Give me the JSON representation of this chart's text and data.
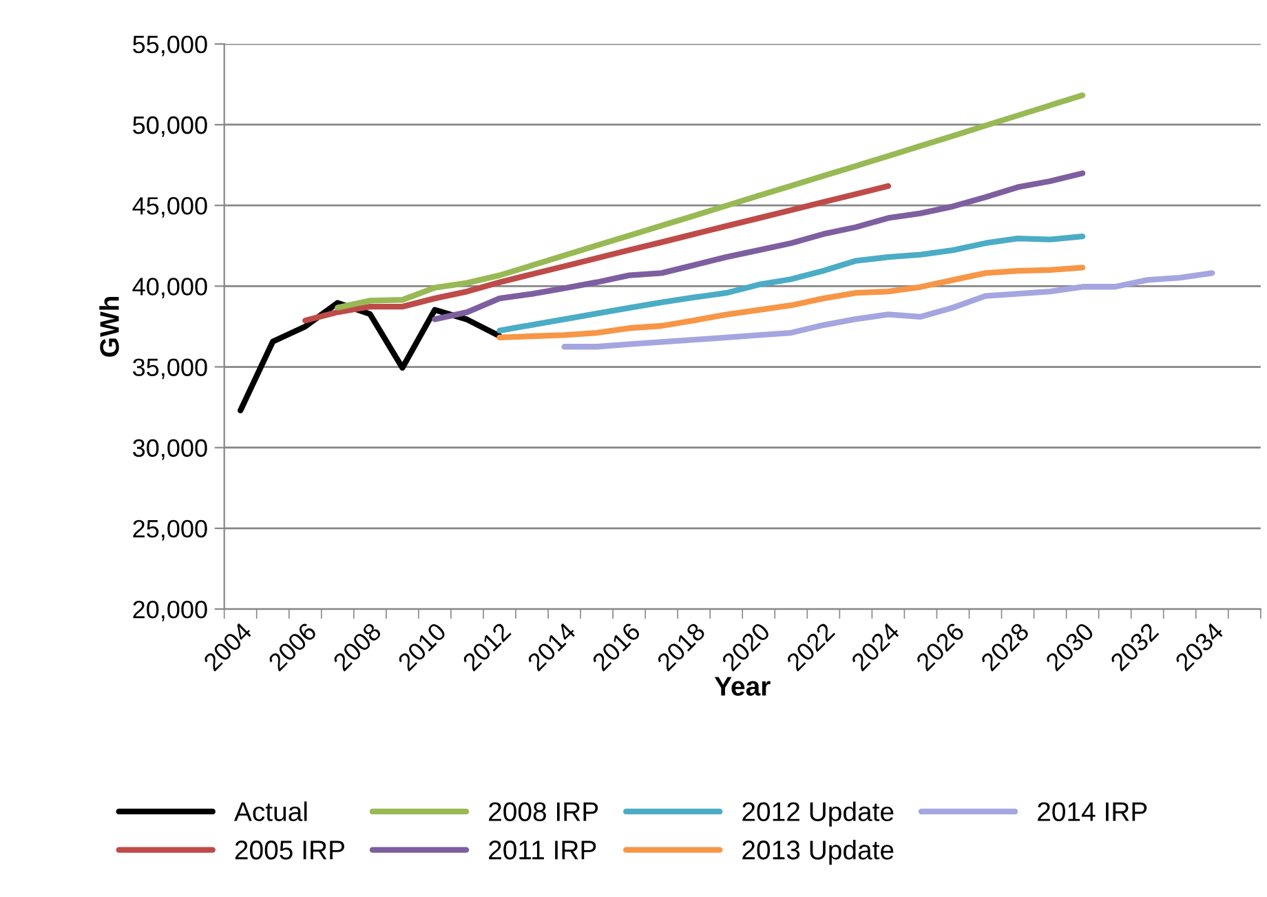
{
  "chart_data": {
    "type": "line",
    "xlabel": "Year",
    "ylabel": "GWh",
    "categories": [
      "2004",
      null,
      "2006",
      null,
      "2008",
      null,
      "2010",
      null,
      "2012",
      null,
      "2014",
      null,
      "2016",
      null,
      "2018",
      null,
      "2020",
      null,
      "2022",
      null,
      "2024",
      null,
      "2026",
      null,
      "2028",
      null,
      "2030",
      null,
      "2032",
      null,
      "2034",
      null
    ],
    "ylim": [
      20000,
      55000
    ],
    "yticks": [
      {
        "value": 20000,
        "label": "20,000"
      },
      {
        "value": 25000,
        "label": "25,000"
      },
      {
        "value": 30000,
        "label": "30,000"
      },
      {
        "value": 35000,
        "label": "35,000"
      },
      {
        "value": 40000,
        "label": "40,000"
      },
      {
        "value": 45000,
        "label": "45,000"
      },
      {
        "value": 50000,
        "label": "50,000"
      },
      {
        "value": 55000,
        "label": "55,000"
      }
    ],
    "grid": "y",
    "legend": "bottom",
    "marker": "none",
    "line_style": "solid",
    "series": [
      {
        "name": "Actual",
        "color": "#000000",
        "values": [
          32300,
          36570,
          37500,
          38960,
          38270,
          34940,
          38530,
          37930,
          36910,
          null,
          null,
          null,
          null,
          null,
          null,
          null,
          null,
          null,
          null,
          null,
          null,
          null,
          null,
          null,
          null,
          null,
          null,
          null,
          null,
          null,
          null,
          null
        ]
      },
      {
        "name": "2005 IRP",
        "color": "#be4b48",
        "values": [
          null,
          null,
          37870,
          38390,
          38730,
          38730,
          39240,
          39670,
          40240,
          40740,
          41230,
          41730,
          42230,
          42720,
          43220,
          43720,
          44210,
          44710,
          45210,
          45700,
          46200,
          null,
          null,
          null,
          null,
          null,
          null,
          null,
          null,
          null,
          null,
          null
        ]
      },
      {
        "name": "2008 IRP",
        "color": "#98b954",
        "values": [
          null,
          null,
          null,
          38670,
          39100,
          39150,
          39900,
          40200,
          40670,
          41280,
          41900,
          42520,
          43130,
          43750,
          44360,
          44980,
          45600,
          46210,
          46830,
          47440,
          48060,
          48690,
          49310,
          49940,
          50570,
          51200,
          51820,
          null,
          null,
          null,
          null,
          null
        ]
      },
      {
        "name": "2011 IRP",
        "color": "#7d5fa0",
        "values": [
          null,
          null,
          null,
          null,
          null,
          null,
          37950,
          38390,
          39240,
          39520,
          39870,
          40240,
          40670,
          40810,
          41300,
          41800,
          42230,
          42660,
          43230,
          43650,
          44220,
          44510,
          44940,
          45510,
          46130,
          46500,
          46990,
          null,
          null,
          null,
          null,
          null
        ]
      },
      {
        "name": "2012 Update",
        "color": "#4bacc6",
        "values": [
          null,
          null,
          null,
          null,
          null,
          null,
          null,
          null,
          37250,
          37600,
          37950,
          38300,
          38650,
          39000,
          39300,
          39580,
          40090,
          40430,
          40950,
          41570,
          41800,
          41950,
          42230,
          42660,
          42950,
          42890,
          43080,
          null,
          null,
          null,
          null,
          null
        ]
      },
      {
        "name": "2013 Update",
        "color": "#f79646",
        "values": [
          null,
          null,
          null,
          null,
          null,
          null,
          null,
          null,
          36820,
          36900,
          36970,
          37110,
          37400,
          37540,
          37880,
          38240,
          38530,
          38810,
          39240,
          39580,
          39670,
          39950,
          40380,
          40810,
          40950,
          41000,
          41150,
          null,
          null,
          null,
          null,
          null
        ]
      },
      {
        "name": "2014 IRP",
        "color": "#a5a5e0",
        "values": [
          null,
          null,
          null,
          null,
          null,
          null,
          null,
          null,
          null,
          null,
          36250,
          36250,
          36400,
          36540,
          36680,
          36820,
          36970,
          37110,
          37590,
          37960,
          38250,
          38100,
          38670,
          39390,
          39530,
          39670,
          39960,
          39960,
          40380,
          40520,
          40810,
          null
        ]
      }
    ]
  }
}
